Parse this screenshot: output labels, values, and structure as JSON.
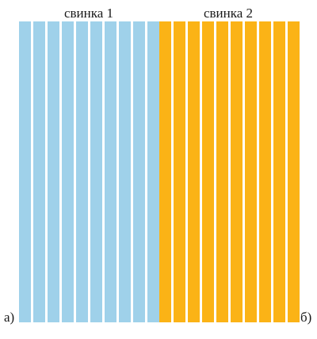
{
  "groups": [
    {
      "label": "свинка 1",
      "strip_count": 10,
      "color": "#9fd1ea"
    },
    {
      "label": "свинка 2",
      "strip_count": 10,
      "color": "#fbb316"
    }
  ],
  "panel_letters": {
    "left": "а)",
    "right": "б)"
  }
}
